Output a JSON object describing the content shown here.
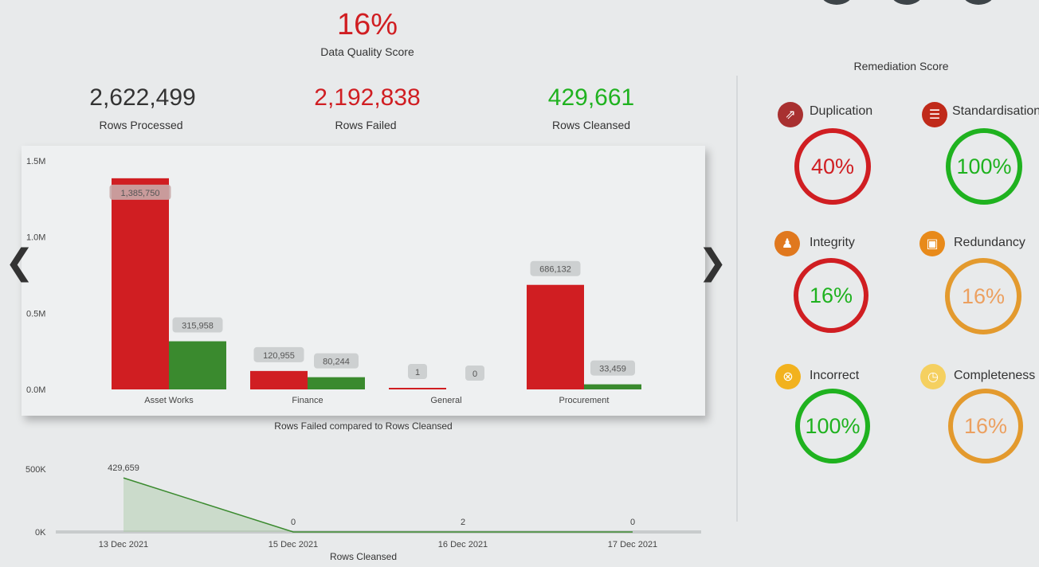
{
  "kpis": {
    "score_value": "16%",
    "score_label": "Data Quality Score",
    "processed_value": "2,622,499",
    "processed_label": "Rows Processed",
    "failed_value": "2,192,838",
    "failed_label": "Rows Failed",
    "cleansed_value": "429,661",
    "cleansed_label": "Rows Cleansed"
  },
  "nav": {
    "prev": "❮",
    "next": "❯"
  },
  "colors": {
    "red": "#d01e22",
    "green": "#3a8a2e",
    "green_text": "#1fb21f",
    "orange": "#e39a2e",
    "dark": "#333333"
  },
  "chart_data": [
    {
      "type": "bar",
      "title": "Rows Failed compared to Rows Cleansed",
      "categories": [
        "Asset Works",
        "Finance",
        "General",
        "Procurement"
      ],
      "series": [
        {
          "name": "Rows Failed",
          "values": [
            1385750,
            120955,
            1,
            686132
          ],
          "labels": [
            "1,385,750",
            "120,955",
            "1",
            "686,132"
          ],
          "color": "#d01e22"
        },
        {
          "name": "Rows Cleansed",
          "values": [
            315958,
            80244,
            0,
            33459
          ],
          "labels": [
            "315,958",
            "80,244",
            "0",
            "33,459"
          ],
          "color": "#3a8a2e"
        }
      ],
      "yticks": [
        "0.0M",
        "0.5M",
        "1.0M",
        "1.5M"
      ],
      "ylim": [
        0,
        1500000
      ],
      "grid": false
    },
    {
      "type": "area",
      "title": "Rows Cleansed",
      "x": [
        "13 Dec 2021",
        "15 Dec 2021",
        "16 Dec 2021",
        "17 Dec 2021"
      ],
      "values": [
        429659,
        0,
        2,
        0
      ],
      "labels": [
        "429,659",
        "0",
        "2",
        "0"
      ],
      "yticks": [
        "0K",
        "500K"
      ],
      "ylim": [
        0,
        500000
      ],
      "color": "#3a8a2e"
    }
  ],
  "remediation": {
    "title": "Remediation Score",
    "items": [
      {
        "label": "Duplication",
        "value": "40%",
        "ring": "#d01e22",
        "text": "#d01e22",
        "icon_bg": "#a83030",
        "icon": "⇗"
      },
      {
        "label": "Standardisation",
        "value": "100%",
        "ring": "#1fb21f",
        "text": "#1fb21f",
        "icon_bg": "#c02a1a",
        "icon": "☰"
      },
      {
        "label": "Integrity",
        "value": "16%",
        "ring": "#d01e22",
        "text": "#1fb21f",
        "icon_bg": "#e0781e",
        "icon": "♟"
      },
      {
        "label": "Redundancy",
        "value": "16%",
        "ring": "#e39a2e",
        "text": "#eca060",
        "icon_bg": "#e88a1a",
        "icon": "▣"
      },
      {
        "label": "Incorrect",
        "value": "100%",
        "ring": "#1fb21f",
        "text": "#1fb21f",
        "icon_bg": "#f2b21e",
        "icon": "⊗"
      },
      {
        "label": "Completeness",
        "value": "16%",
        "ring": "#e39a2e",
        "text": "#eca060",
        "icon_bg": "#f5d060",
        "icon": "◷"
      }
    ]
  }
}
